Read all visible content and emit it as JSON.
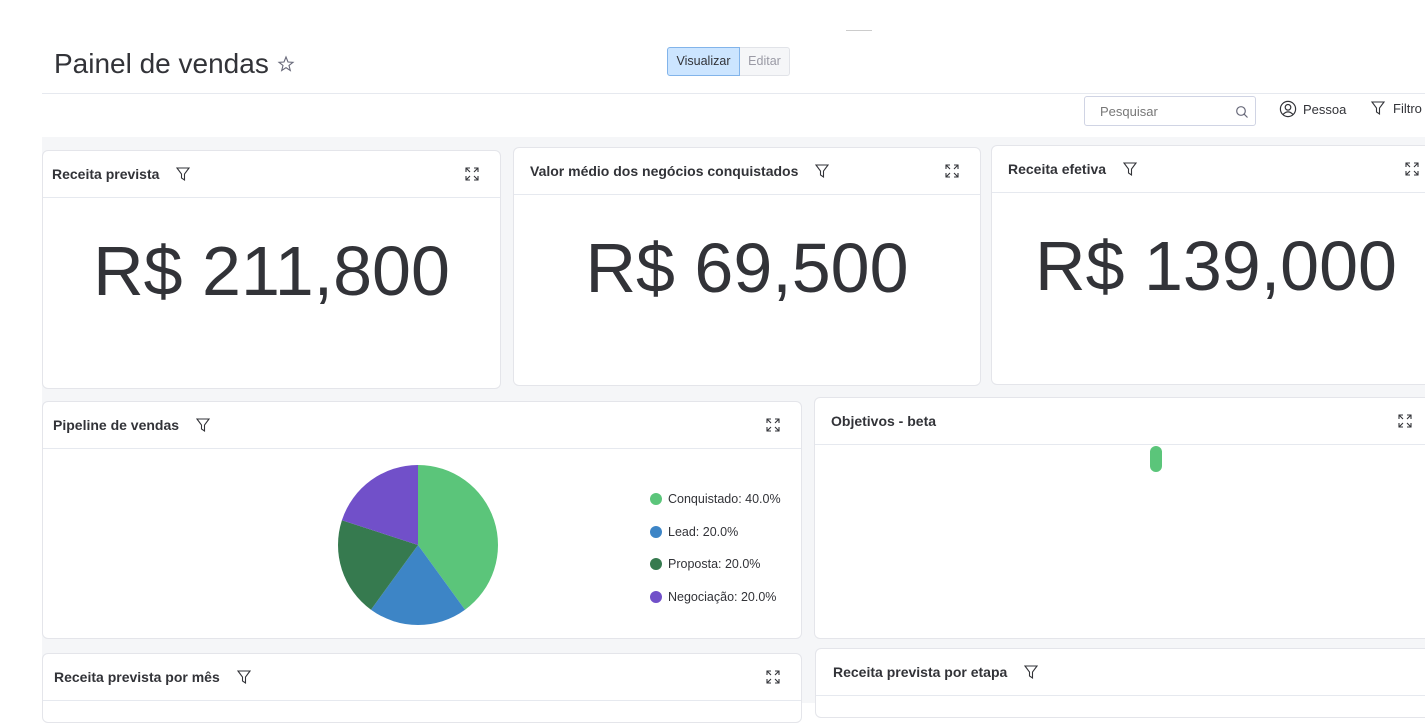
{
  "header": {
    "title": "Painel de vendas",
    "view_toggle": [
      "Visualizar",
      "Editar"
    ],
    "search_placeholder": "Pesquisar",
    "person": "Pessoa",
    "filter": "Filtro"
  },
  "widgets": [
    {
      "title": "Receita prevista",
      "value": "R$ 211,800"
    },
    {
      "title": "Valor médio dos negócios conquistados",
      "value": "R$ 69,500"
    },
    {
      "title": "Receita efetiva",
      "value": "R$ 139,000"
    }
  ],
  "pipeline": {
    "title": "Pipeline de vendas",
    "chart_data": {
      "type": "pie",
      "categories": [
        "Conquistado",
        "Lead",
        "Proposta",
        "Negociação"
      ],
      "values": [
        40,
        20,
        20,
        20
      ],
      "labels": [
        "Conquistado: 40.0%",
        "Lead: 20.0%",
        "Proposta: 20.0%",
        "Negociação: 20.0%"
      ],
      "colors": [
        "#5bc57a",
        "#3d85c6",
        "#367a4f",
        "#7150c9"
      ]
    }
  },
  "objectives": {
    "title": "Objetivos - beta"
  },
  "bottom": [
    {
      "title": "Receita prevista por mês"
    },
    {
      "title": "Receita prevista por etapa"
    }
  ]
}
